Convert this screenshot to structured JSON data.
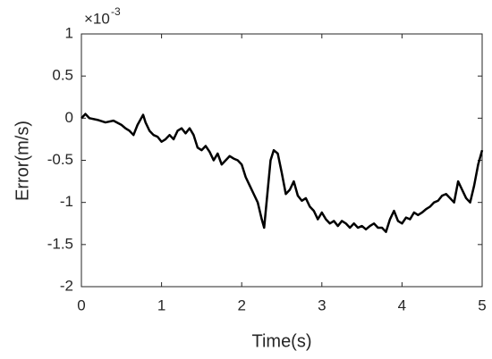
{
  "chart_data": {
    "type": "line",
    "xlabel": "Time(s)",
    "ylabel": "Error(m/s)",
    "y_multiplier": "×10",
    "y_multiplier_exponent": "-3",
    "xlim": [
      0,
      5
    ],
    "xticks": [
      0,
      1,
      2,
      3,
      4,
      5
    ],
    "ylim": [
      -2,
      1
    ],
    "yticks": [
      1,
      0.5,
      0,
      -0.5,
      -1,
      -1.5,
      -2
    ],
    "grid": false,
    "box": true,
    "series": [
      {
        "color": "#000000",
        "x": [
          0,
          0.05,
          0.1,
          0.2,
          0.3,
          0.4,
          0.5,
          0.55,
          0.6,
          0.65,
          0.7,
          0.77,
          0.8,
          0.85,
          0.9,
          0.95,
          1.0,
          1.05,
          1.1,
          1.15,
          1.2,
          1.25,
          1.3,
          1.35,
          1.4,
          1.45,
          1.5,
          1.55,
          1.6,
          1.65,
          1.7,
          1.75,
          1.8,
          1.85,
          1.9,
          1.95,
          2.0,
          2.05,
          2.1,
          2.15,
          2.2,
          2.25,
          2.28,
          2.32,
          2.36,
          2.4,
          2.45,
          2.5,
          2.55,
          2.6,
          2.65,
          2.7,
          2.75,
          2.8,
          2.85,
          2.9,
          2.95,
          3.0,
          3.05,
          3.1,
          3.15,
          3.2,
          3.25,
          3.3,
          3.35,
          3.4,
          3.45,
          3.5,
          3.55,
          3.6,
          3.65,
          3.7,
          3.75,
          3.8,
          3.85,
          3.9,
          3.95,
          4.0,
          4.05,
          4.1,
          4.15,
          4.2,
          4.25,
          4.3,
          4.35,
          4.4,
          4.45,
          4.5,
          4.55,
          4.6,
          4.65,
          4.7,
          4.75,
          4.8,
          4.85,
          4.9,
          4.95,
          5.0
        ],
        "values": [
          0,
          0.05,
          0.0,
          -0.02,
          -0.05,
          -0.03,
          -0.08,
          -0.12,
          -0.15,
          -0.2,
          -0.08,
          0.04,
          -0.05,
          -0.15,
          -0.2,
          -0.22,
          -0.28,
          -0.25,
          -0.2,
          -0.25,
          -0.15,
          -0.12,
          -0.18,
          -0.12,
          -0.2,
          -0.35,
          -0.38,
          -0.33,
          -0.4,
          -0.5,
          -0.42,
          -0.55,
          -0.5,
          -0.45,
          -0.48,
          -0.5,
          -0.55,
          -0.7,
          -0.8,
          -0.9,
          -1.0,
          -1.2,
          -1.3,
          -0.9,
          -0.5,
          -0.38,
          -0.42,
          -0.65,
          -0.9,
          -0.85,
          -0.75,
          -0.92,
          -0.98,
          -0.95,
          -1.05,
          -1.1,
          -1.2,
          -1.12,
          -1.2,
          -1.25,
          -1.22,
          -1.28,
          -1.22,
          -1.25,
          -1.3,
          -1.25,
          -1.3,
          -1.28,
          -1.32,
          -1.28,
          -1.25,
          -1.3,
          -1.3,
          -1.35,
          -1.2,
          -1.1,
          -1.22,
          -1.25,
          -1.18,
          -1.2,
          -1.12,
          -1.15,
          -1.12,
          -1.08,
          -1.05,
          -1.0,
          -0.98,
          -0.92,
          -0.9,
          -0.95,
          -1.0,
          -0.75,
          -0.85,
          -0.95,
          -1.0,
          -0.8,
          -0.55,
          -0.38
        ]
      }
    ]
  }
}
